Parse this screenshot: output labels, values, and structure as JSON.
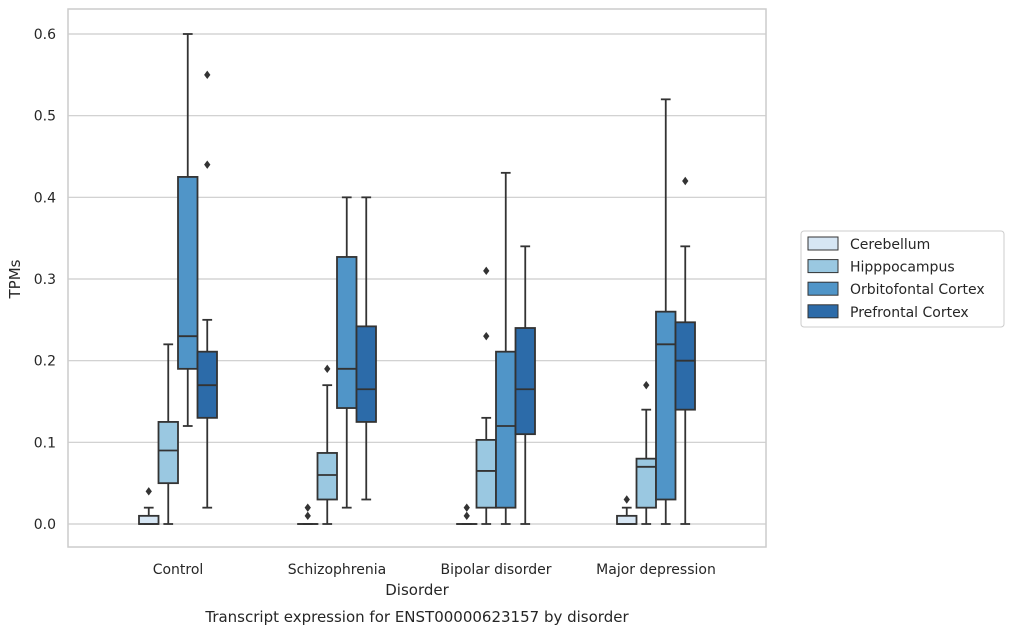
{
  "chart_data": {
    "type": "box",
    "caption": "Transcript expression for ENST00000623157 by disorder",
    "xlabel": "Disorder",
    "ylabel": "TPMs",
    "ylim": [
      -0.03,
      0.63
    ],
    "yticks": [
      0.0,
      0.1,
      0.2,
      0.3,
      0.4,
      0.5,
      0.6
    ],
    "ytick_labels": [
      "0.0",
      "0.1",
      "0.2",
      "0.3",
      "0.4",
      "0.5",
      "0.6"
    ],
    "grid": "horizontal",
    "legend_placement": "right",
    "categories": [
      "Control",
      "Schizophrenia",
      "Bipolar disorder",
      "Major depression"
    ],
    "series": [
      {
        "name": "Cerebellum",
        "color": "#d6e6f4",
        "boxes": [
          {
            "whisker_low": 0.0,
            "q1": 0.0,
            "median": 0.0,
            "q3": 0.01,
            "whisker_high": 0.02,
            "outliers": [
              0.04
            ]
          },
          {
            "whisker_low": 0.0,
            "q1": 0.0,
            "median": 0.0,
            "q3": 0.0,
            "whisker_high": 0.0,
            "outliers": [
              0.01,
              0.02
            ]
          },
          {
            "whisker_low": 0.0,
            "q1": 0.0,
            "median": 0.0,
            "q3": 0.0,
            "whisker_high": 0.0,
            "outliers": [
              0.01,
              0.02
            ]
          },
          {
            "whisker_low": 0.0,
            "q1": 0.0,
            "median": 0.0,
            "q3": 0.01,
            "whisker_high": 0.02,
            "outliers": [
              0.03
            ]
          }
        ]
      },
      {
        "name": "Hipppocampus",
        "color": "#9ac8e1",
        "boxes": [
          {
            "whisker_low": 0.0,
            "q1": 0.05,
            "median": 0.09,
            "q3": 0.125,
            "whisker_high": 0.22,
            "outliers": []
          },
          {
            "whisker_low": 0.0,
            "q1": 0.03,
            "median": 0.06,
            "q3": 0.087,
            "whisker_high": 0.17,
            "outliers": [
              0.19
            ]
          },
          {
            "whisker_low": 0.0,
            "q1": 0.02,
            "median": 0.065,
            "q3": 0.103,
            "whisker_high": 0.13,
            "outliers": [
              0.23,
              0.31
            ]
          },
          {
            "whisker_low": 0.0,
            "q1": 0.02,
            "median": 0.07,
            "q3": 0.08,
            "whisker_high": 0.14,
            "outliers": [
              0.17
            ]
          }
        ]
      },
      {
        "name": "Orbitofontal Cortex",
        "color": "#5095c8",
        "boxes": [
          {
            "whisker_low": 0.12,
            "q1": 0.19,
            "median": 0.23,
            "q3": 0.425,
            "whisker_high": 0.6,
            "outliers": []
          },
          {
            "whisker_low": 0.02,
            "q1": 0.142,
            "median": 0.19,
            "q3": 0.327,
            "whisker_high": 0.4,
            "outliers": []
          },
          {
            "whisker_low": 0.0,
            "q1": 0.02,
            "median": 0.12,
            "q3": 0.211,
            "whisker_high": 0.43,
            "outliers": []
          },
          {
            "whisker_low": 0.0,
            "q1": 0.03,
            "median": 0.22,
            "q3": 0.26,
            "whisker_high": 0.52,
            "outliers": []
          }
        ]
      },
      {
        "name": "Prefrontal Cortex",
        "color": "#2c6ba9",
        "boxes": [
          {
            "whisker_low": 0.02,
            "q1": 0.13,
            "median": 0.17,
            "q3": 0.211,
            "whisker_high": 0.25,
            "outliers": [
              0.44,
              0.55
            ]
          },
          {
            "whisker_low": 0.03,
            "q1": 0.125,
            "median": 0.165,
            "q3": 0.242,
            "whisker_high": 0.4,
            "outliers": []
          },
          {
            "whisker_low": 0.0,
            "q1": 0.11,
            "median": 0.165,
            "q3": 0.24,
            "whisker_high": 0.34,
            "outliers": []
          },
          {
            "whisker_low": 0.0,
            "q1": 0.14,
            "median": 0.2,
            "q3": 0.247,
            "whisker_high": 0.34,
            "outliers": [
              0.42
            ]
          }
        ]
      }
    ]
  }
}
